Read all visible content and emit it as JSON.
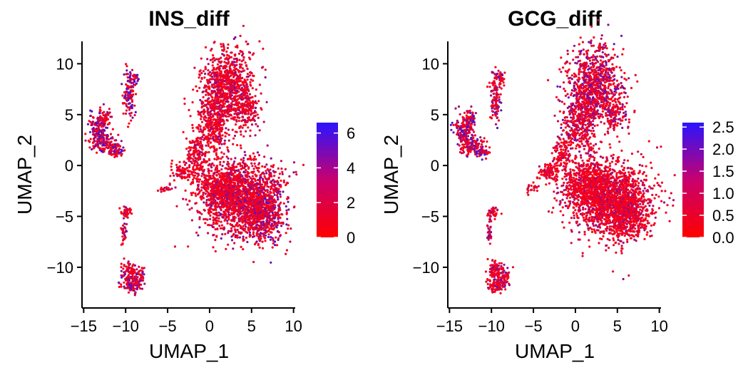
{
  "chart_data": [
    {
      "type": "scatter",
      "title": "INS_diff",
      "xlabel": "UMAP_1",
      "ylabel": "UMAP_2",
      "xlim": [
        -15.2,
        10.2
      ],
      "ylim": [
        -14,
        12.2
      ],
      "xticks": [
        -15,
        -10,
        -5,
        0,
        5,
        10
      ],
      "xtick_labels": [
        "−15",
        "−10",
        "−5",
        "0",
        "5",
        "10"
      ],
      "yticks": [
        -10,
        -5,
        0,
        5,
        10
      ],
      "ytick_labels": [
        "−10",
        "−5",
        "0",
        "5",
        "10"
      ],
      "colorbar": {
        "min": 0,
        "max": 6.6,
        "ticks": [
          0,
          2,
          4,
          6
        ],
        "tick_labels": [
          "0",
          "2",
          "4",
          "6"
        ],
        "low_color": "#ff0000",
        "high_color": "#0000ff"
      },
      "seed": 7
    },
    {
      "type": "scatter",
      "title": "GCG_diff",
      "xlabel": "UMAP_1",
      "ylabel": "UMAP_2",
      "xlim": [
        -15.2,
        10.2
      ],
      "ylim": [
        -14,
        12.2
      ],
      "xticks": [
        -15,
        -10,
        -5,
        0,
        5,
        10
      ],
      "xtick_labels": [
        "−15",
        "−10",
        "−5",
        "0",
        "5",
        "10"
      ],
      "yticks": [
        -10,
        -5,
        0,
        5,
        10
      ],
      "ytick_labels": [
        "−10",
        "−5",
        "0",
        "5",
        "10"
      ],
      "colorbar": {
        "min": 0,
        "max": 2.6,
        "ticks": [
          0,
          0.5,
          1,
          1.5,
          2,
          2.5
        ],
        "tick_labels": [
          "0.0",
          "0.5",
          "1.0",
          "1.5",
          "2.0",
          "2.5"
        ],
        "low_color": "#ff0000",
        "high_color": "#0000ff"
      },
      "seed": 23
    }
  ]
}
